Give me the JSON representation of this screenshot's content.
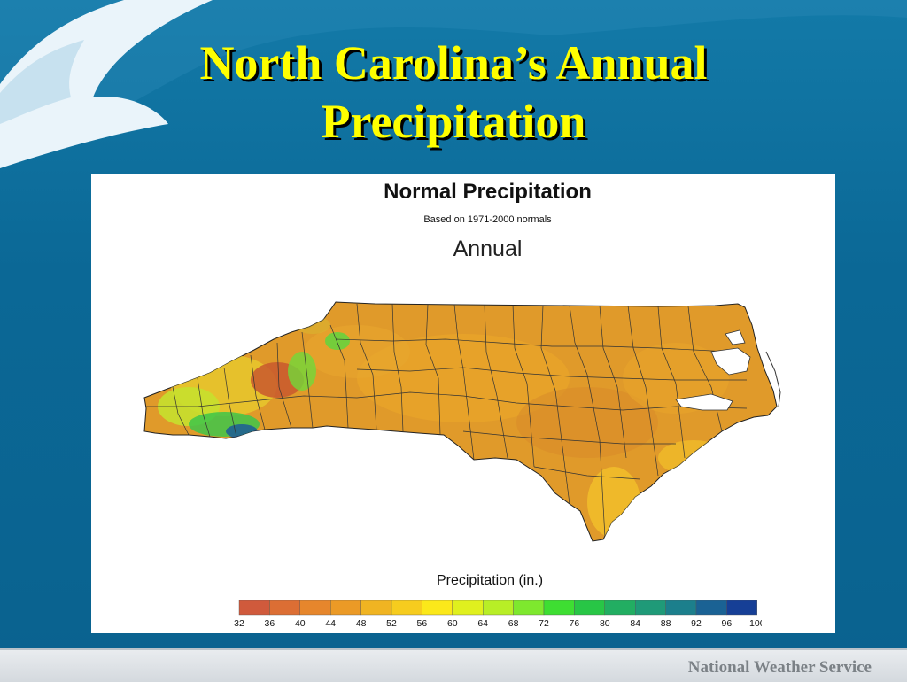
{
  "slide": {
    "title_line1": "North Carolina’s Annual",
    "title_line2": "Precipitation",
    "footer": "National Weather Service"
  },
  "map": {
    "title": "Normal Precipitation",
    "subtitle": "Based on 1971-2000 normals",
    "period": "Annual",
    "legend_title": "Precipitation (in.)",
    "legend": {
      "ticks": [
        "32",
        "36",
        "40",
        "44",
        "48",
        "52",
        "56",
        "60",
        "64",
        "68",
        "72",
        "76",
        "80",
        "84",
        "88",
        "92",
        "96",
        "100"
      ],
      "colors": [
        "#d05a3c",
        "#dc6e34",
        "#e6862c",
        "#eb9a26",
        "#f0b422",
        "#f6cc1e",
        "#fbe81a",
        "#e0f01e",
        "#b8ee26",
        "#7ee82e",
        "#3ede32",
        "#28c646",
        "#22ae62",
        "#1f9a78",
        "#1c7f8c",
        "#1a6294",
        "#163f96"
      ]
    }
  },
  "colors": {
    "title": "#ffff00",
    "slide_background": "#0b6a98",
    "state_fill": "#e09a2a"
  }
}
